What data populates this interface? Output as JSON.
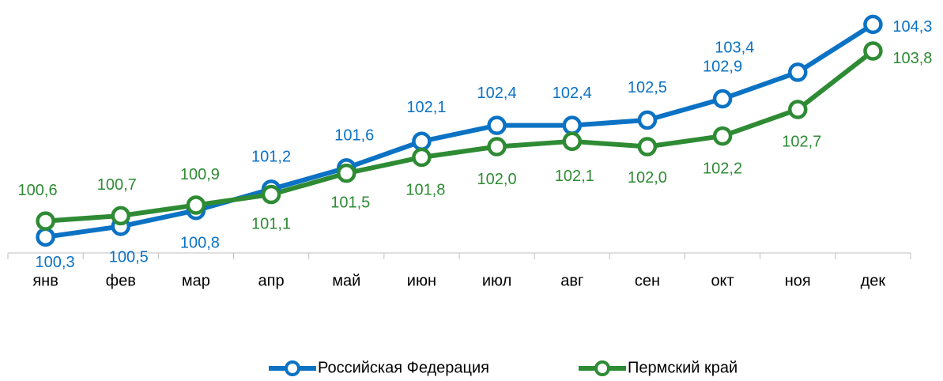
{
  "chart_data": {
    "type": "line",
    "categories": [
      "янв",
      "фев",
      "мар",
      "апр",
      "май",
      "июн",
      "июл",
      "авг",
      "сен",
      "окт",
      "ноя",
      "дек"
    ],
    "series": [
      {
        "name": "Российская Федерация",
        "color": "#0b72c4",
        "values": [
          100.3,
          100.5,
          100.8,
          101.2,
          101.6,
          102.1,
          102.4,
          102.4,
          102.5,
          102.9,
          103.4,
          104.3
        ],
        "value_labels": [
          "100,3",
          "100,5",
          "100,8",
          "101,2",
          "101,6",
          "102,1",
          "102,4",
          "102,4",
          "102,5",
          "102,9",
          "103,4",
          "104,3"
        ]
      },
      {
        "name": "Пермский край",
        "color": "#2e8b34",
        "values": [
          100.6,
          100.7,
          100.9,
          101.1,
          101.5,
          101.8,
          102.0,
          102.1,
          102.0,
          102.2,
          102.7,
          103.8
        ],
        "value_labels": [
          "100,6",
          "100,7",
          "100,9",
          "101,1",
          "101,5",
          "101,8",
          "102,0",
          "102,1",
          "102,0",
          "102,2",
          "102,7",
          "103,8"
        ]
      }
    ],
    "ylim": [
      100,
      104.7
    ],
    "legend": "bottom"
  }
}
